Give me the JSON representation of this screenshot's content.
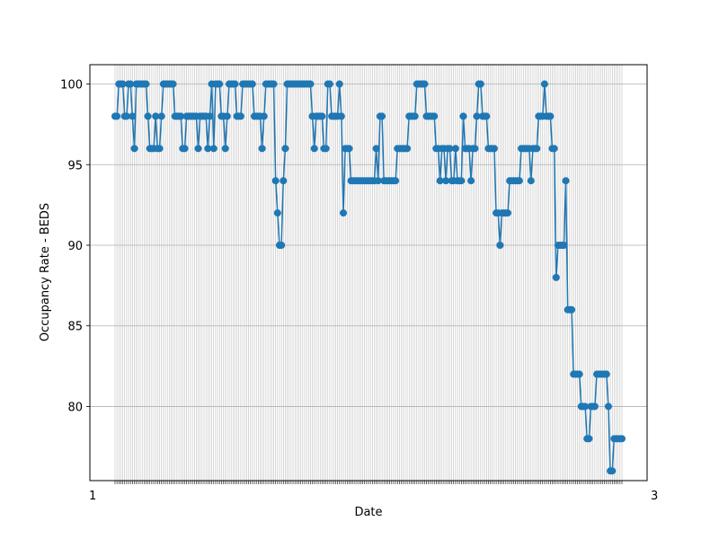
{
  "chart_data": {
    "type": "line",
    "title": "",
    "xlabel": "Date",
    "ylabel": "Occupancy Rate - BEDS",
    "ylim": [
      75.4,
      101.2
    ],
    "yticks": [
      80,
      85,
      90,
      95,
      100
    ],
    "grid": true,
    "marker": "circle",
    "color": "#1f77b4",
    "x_tick_labels_note": "dense overlapping date labels",
    "x_tick_label_start": "1",
    "x_tick_label_end": "3",
    "series": [
      {
        "name": "Occupancy Rate - BEDS",
        "values": [
          98,
          98,
          100,
          100,
          100,
          98,
          98,
          100,
          100,
          98,
          96,
          100,
          100,
          100,
          100,
          100,
          100,
          98,
          96,
          96,
          96,
          98,
          96,
          96,
          98,
          100,
          100,
          100,
          100,
          100,
          100,
          98,
          98,
          98,
          98,
          96,
          96,
          98,
          98,
          98,
          98,
          98,
          98,
          96,
          98,
          98,
          98,
          98,
          96,
          98,
          100,
          96,
          100,
          100,
          100,
          98,
          98,
          96,
          98,
          100,
          100,
          100,
          100,
          98,
          98,
          98,
          100,
          100,
          100,
          100,
          100,
          100,
          98,
          98,
          98,
          98,
          96,
          98,
          100,
          100,
          100,
          100,
          100,
          94,
          92,
          90,
          90,
          94,
          96,
          100,
          100,
          100,
          100,
          100,
          100,
          100,
          100,
          100,
          100,
          100,
          100,
          100,
          98,
          96,
          98,
          98,
          98,
          98,
          96,
          96,
          100,
          100,
          98,
          98,
          98,
          98,
          100,
          98,
          92,
          96,
          96,
          96,
          94,
          94,
          94,
          94,
          94,
          94,
          94,
          94,
          94,
          94,
          94,
          94,
          94,
          96,
          94,
          98,
          98,
          94,
          94,
          94,
          94,
          94,
          94,
          94,
          96,
          96,
          96,
          96,
          96,
          96,
          98,
          98,
          98,
          98,
          100,
          100,
          100,
          100,
          100,
          98,
          98,
          98,
          98,
          98,
          96,
          96,
          94,
          96,
          96,
          94,
          96,
          96,
          94,
          94,
          96,
          94,
          94,
          94,
          98,
          96,
          96,
          96,
          94,
          96,
          96,
          98,
          100,
          100,
          98,
          98,
          98,
          96,
          96,
          96,
          96,
          92,
          92,
          90,
          92,
          92,
          92,
          92,
          94,
          94,
          94,
          94,
          94,
          94,
          96,
          96,
          96,
          96,
          96,
          94,
          96,
          96,
          96,
          98,
          98,
          98,
          100,
          98,
          98,
          98,
          96,
          96,
          88,
          90,
          90,
          90,
          90,
          94,
          86,
          86,
          86,
          82,
          82,
          82,
          82,
          80,
          80,
          80,
          78,
          78,
          80,
          80,
          80,
          82,
          82,
          82,
          82,
          82,
          82,
          80,
          76,
          76,
          78,
          78,
          78,
          78,
          78
        ]
      }
    ]
  }
}
